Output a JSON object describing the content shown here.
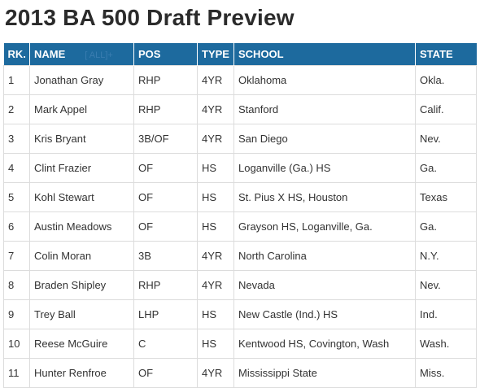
{
  "page": {
    "title": "2013 BA 500 Draft Preview"
  },
  "table": {
    "headers": {
      "rank": "RK.",
      "name": "NAME",
      "all": "[ ALL]+",
      "pos": "POS",
      "type": "TYPE",
      "school": "SCHOOL",
      "state": "STATE"
    },
    "rows": [
      {
        "rank": "1",
        "name": "Jonathan Gray",
        "pos": "RHP",
        "type": "4YR",
        "school": "Oklahoma",
        "state": "Okla."
      },
      {
        "rank": "2",
        "name": "Mark Appel",
        "pos": "RHP",
        "type": "4YR",
        "school": "Stanford",
        "state": "Calif."
      },
      {
        "rank": "3",
        "name": "Kris Bryant",
        "pos": "3B/OF",
        "type": "4YR",
        "school": "San Diego",
        "state": "Nev."
      },
      {
        "rank": "4",
        "name": "Clint Frazier",
        "pos": "OF",
        "type": "HS",
        "school": "Loganville (Ga.) HS",
        "state": "Ga."
      },
      {
        "rank": "5",
        "name": "Kohl Stewart",
        "pos": "OF",
        "type": "HS",
        "school": "St. Pius X HS, Houston",
        "state": "Texas"
      },
      {
        "rank": "6",
        "name": "Austin Meadows",
        "pos": "OF",
        "type": "HS",
        "school": "Grayson HS, Loganville, Ga.",
        "state": "Ga."
      },
      {
        "rank": "7",
        "name": "Colin Moran",
        "pos": "3B",
        "type": "4YR",
        "school": "North Carolina",
        "state": "N.Y."
      },
      {
        "rank": "8",
        "name": "Braden Shipley",
        "pos": "RHP",
        "type": "4YR",
        "school": "Nevada",
        "state": "Nev."
      },
      {
        "rank": "9",
        "name": "Trey Ball",
        "pos": "LHP",
        "type": "HS",
        "school": "New Castle (Ind.) HS",
        "state": "Ind."
      },
      {
        "rank": "10",
        "name": "Reese McGuire",
        "pos": "C",
        "type": "HS",
        "school": "Kentwood HS, Covington, Wash",
        "state": "Wash."
      },
      {
        "rank": "11",
        "name": "Hunter Renfroe",
        "pos": "OF",
        "type": "4YR",
        "school": "Mississippi State",
        "state": "Miss."
      }
    ]
  }
}
